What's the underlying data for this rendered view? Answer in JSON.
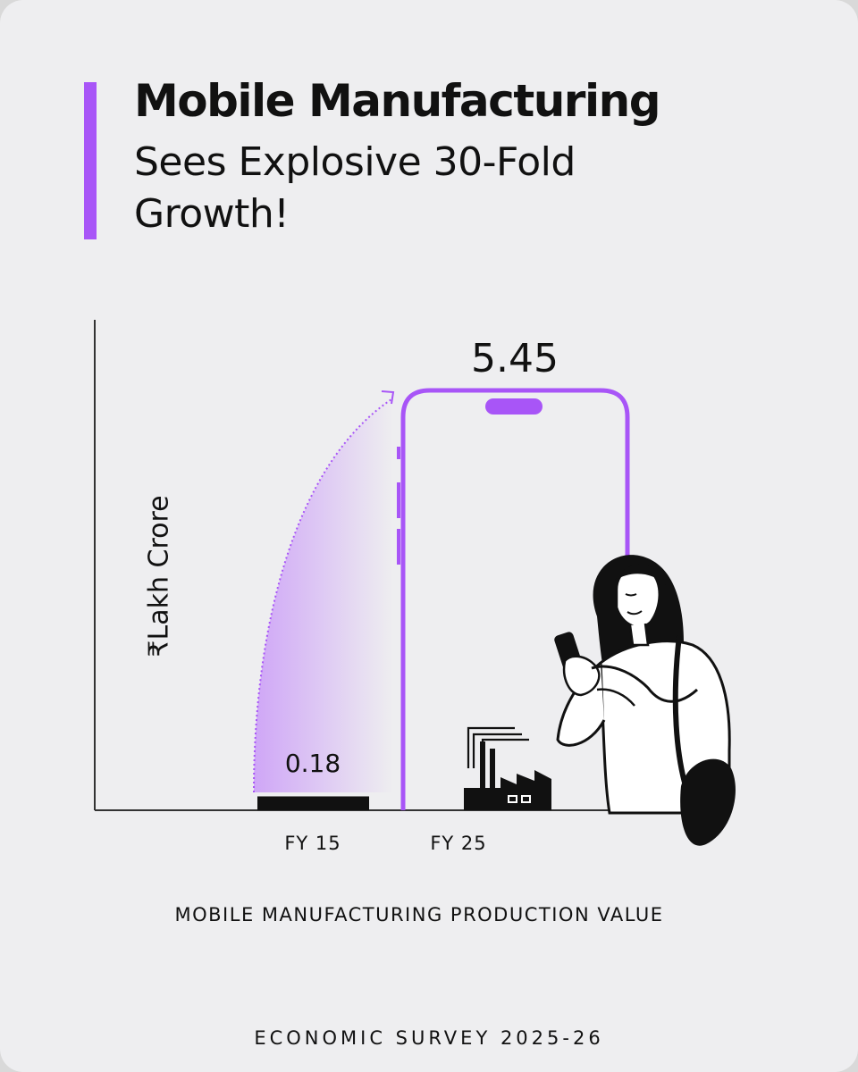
{
  "header": {
    "title_bold": "Mobile Manufacturing",
    "title_line2": "Sees Explosive 30-Fold",
    "title_line3": "Growth!"
  },
  "colors": {
    "accent": "#a855f7",
    "background": "#eeeef0",
    "text": "#111111"
  },
  "chart_data": {
    "type": "bar",
    "categories": [
      "FY 15",
      "FY 25"
    ],
    "values": [
      0.18,
      5.45
    ],
    "value_labels": [
      "0.18",
      "5.45"
    ],
    "ylabel": "₹Lakh Crore",
    "xlabel": "MOBILE MANUFACTURING PRODUCTION VALUE",
    "ylim": [
      0,
      5.45
    ]
  },
  "footer": {
    "source": "ECONOMIC SURVEY 2025-26"
  },
  "icons": [
    "phone-outline-icon",
    "factory-icon",
    "woman-with-phone-illustration",
    "growth-arrow-icon"
  ]
}
